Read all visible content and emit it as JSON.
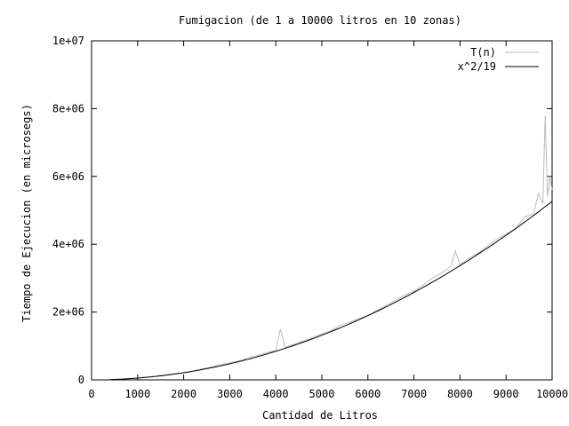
{
  "chart_data": {
    "type": "line",
    "title": "Fumigacion (de 1 a 10000 litros en 10 zonas)",
    "xlabel": "Cantidad de Litros",
    "ylabel": "Tiempo de Ejecucion (en microsegs)",
    "xlim": [
      0,
      10000
    ],
    "ylim": [
      0,
      10000000
    ],
    "xticks": [
      0,
      1000,
      2000,
      3000,
      4000,
      5000,
      6000,
      7000,
      8000,
      9000,
      10000
    ],
    "xtick_labels": [
      "0",
      "1000",
      "2000",
      "3000",
      "4000",
      "5000",
      "6000",
      "7000",
      "8000",
      "9000",
      "10000"
    ],
    "yticks": [
      0,
      2000000,
      4000000,
      6000000,
      8000000,
      10000000
    ],
    "ytick_labels": [
      "0",
      "2e+06",
      "4e+06",
      "6e+06",
      "8e+06",
      "1e+07"
    ],
    "grid": false,
    "legend_position": "top-right",
    "series": [
      {
        "name": "T(n)",
        "color": "#bbbbbb",
        "x": [
          400,
          600,
          800,
          1000,
          1200,
          1400,
          1600,
          1800,
          2000,
          2200,
          2400,
          2600,
          2800,
          3000,
          3200,
          3400,
          3600,
          3800,
          4000,
          4100,
          4200,
          4400,
          4600,
          4800,
          5000,
          5200,
          5400,
          5600,
          5800,
          6000,
          6200,
          6400,
          6600,
          6800,
          7000,
          7200,
          7400,
          7600,
          7800,
          7900,
          8000,
          8200,
          8400,
          8600,
          8800,
          9000,
          9200,
          9400,
          9600,
          9700,
          9800,
          9850,
          9900,
          9950,
          10000
        ],
        "y": [
          10000,
          20000,
          40000,
          60000,
          80000,
          110000,
          150000,
          180000,
          220000,
          260000,
          320000,
          380000,
          450000,
          500000,
          560000,
          650000,
          720000,
          800000,
          870000,
          1500000,
          960000,
          1050000,
          1150000,
          1250000,
          1350000,
          1450000,
          1600000,
          1700000,
          1800000,
          1900000,
          2050000,
          2200000,
          2350000,
          2500000,
          2620000,
          2800000,
          3000000,
          3150000,
          3350000,
          3800000,
          3400000,
          3600000,
          3750000,
          3950000,
          4150000,
          4300000,
          4450000,
          4800000,
          4900000,
          5500000,
          5200000,
          7800000,
          5400000,
          6000000,
          5600000
        ]
      },
      {
        "name": "x^2/19",
        "color": "#000000",
        "function": "x^2/19"
      }
    ]
  }
}
